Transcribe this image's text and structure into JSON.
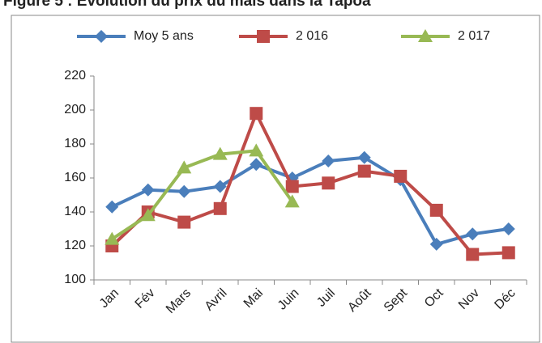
{
  "chart_data": {
    "type": "line",
    "title": "Figure 5 : Évolution du prix du maïs dans la Tapoa",
    "categories": [
      "Jan",
      "Fév",
      "Mars",
      "Avril",
      "Mai",
      "Juin",
      "Juil",
      "Août",
      "Sept",
      "Oct",
      "Nov",
      "Déc"
    ],
    "series": [
      {
        "name": "Moy 5 ans",
        "color": "#4a7ebb",
        "marker": "diamond",
        "values": [
          143,
          153,
          152,
          155,
          168,
          160,
          170,
          172,
          159,
          121,
          127,
          130
        ]
      },
      {
        "name": "2 016",
        "color": "#be4b48",
        "marker": "square",
        "values": [
          120,
          140,
          134,
          142,
          198,
          155,
          157,
          164,
          161,
          141,
          115,
          116
        ]
      },
      {
        "name": "2 017",
        "color": "#98b954",
        "marker": "triangle",
        "values": [
          124,
          138,
          166,
          174,
          176,
          146,
          null,
          null,
          null,
          null,
          null,
          null
        ]
      }
    ],
    "ylim": [
      100,
      220
    ],
    "yticks": [
      100,
      120,
      140,
      160,
      180,
      200,
      220
    ],
    "grid": false,
    "legend": "top"
  }
}
